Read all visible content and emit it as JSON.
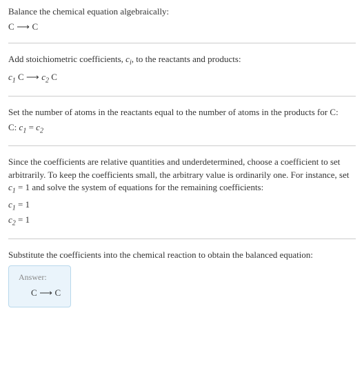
{
  "section1": {
    "line1": "Balance the chemical equation algebraically:",
    "eq_left": "C",
    "eq_arrow": " ⟶ ",
    "eq_right": "C"
  },
  "section2": {
    "line1_part1": "Add stoichiometric coefficients, ",
    "line1_ci": "c",
    "line1_ci_sub": "i",
    "line1_part2": ", to the reactants and products:",
    "eq_c1": "c",
    "eq_c1_sub": "1",
    "eq_sp1": " C ",
    "eq_arrow": "⟶ ",
    "eq_c2": "c",
    "eq_c2_sub": "2",
    "eq_sp2": " C"
  },
  "section3": {
    "line1": "Set the number of atoms in the reactants equal to the number of atoms in the products for C:",
    "label": "C:   ",
    "c1": "c",
    "c1_sub": "1",
    "equals": " = ",
    "c2": "c",
    "c2_sub": "2"
  },
  "section4": {
    "line1_part1": "Since the coefficients are relative quantities and underdetermined, choose a coefficient to set arbitrarily. To keep the coefficients small, the arbitrary value is ordinarily one. For instance, set ",
    "line1_c1": "c",
    "line1_c1_sub": "1",
    "line1_part2": " = 1 and solve the system of equations for the remaining coefficients:",
    "eq1_c": "c",
    "eq1_sub": "1",
    "eq1_rest": " = 1",
    "eq2_c": "c",
    "eq2_sub": "2",
    "eq2_rest": " = 1"
  },
  "section5": {
    "line1": "Substitute the coefficients into the chemical reaction to obtain the balanced equation:"
  },
  "answer": {
    "label": "Answer:",
    "eq_left": "C",
    "eq_arrow": " ⟶ ",
    "eq_right": "C"
  },
  "colors": {
    "text": "#333333",
    "hr": "#cccccc",
    "answer_bg": "#eaf4fb",
    "answer_border": "#b8d8ec",
    "answer_label": "#888888"
  }
}
